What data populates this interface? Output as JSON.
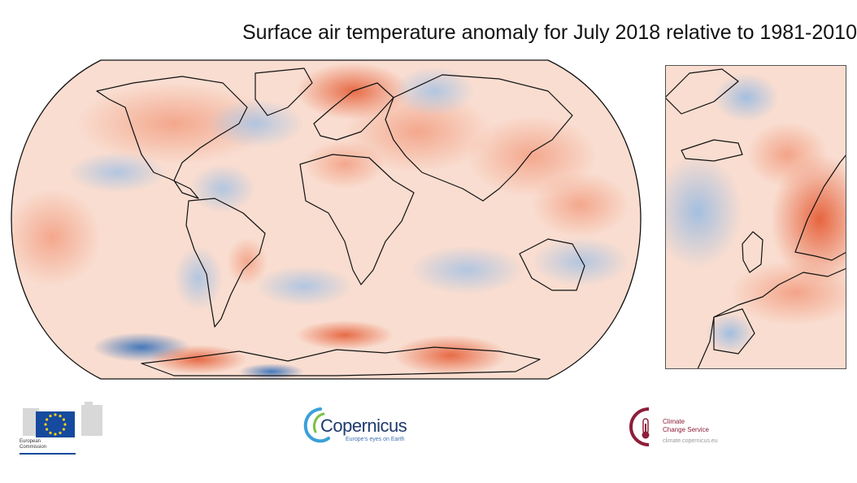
{
  "title": "Surface air temperature anomaly for July 2018 relative to 1981-2010",
  "maps": {
    "world": {
      "projection": "Robinson",
      "icon": "world-anomaly-map"
    },
    "europe": {
      "icon": "europe-anomaly-map"
    }
  },
  "colors": {
    "warm_strong": "#e4572e",
    "warm_mid": "#f29a7c",
    "warm_light": "#fbd7c7",
    "neutral": "#f7f4f2",
    "cool_light": "#d4e1f0",
    "cool_strong": "#3b73b9",
    "coastline": "#111111"
  },
  "footer": {
    "european_commission": {
      "line1": "European",
      "line2": "Commission",
      "icon": "eu-flag-icon"
    },
    "copernicus": {
      "wordmark": "Copernicus",
      "tagline": "Europe's eyes on Earth",
      "icon": "copernicus-swirl-icon"
    },
    "c3s": {
      "line1": "Climate",
      "line2": "Change Service",
      "url": "climate.copernicus.eu",
      "icon": "thermometer-icon"
    }
  }
}
